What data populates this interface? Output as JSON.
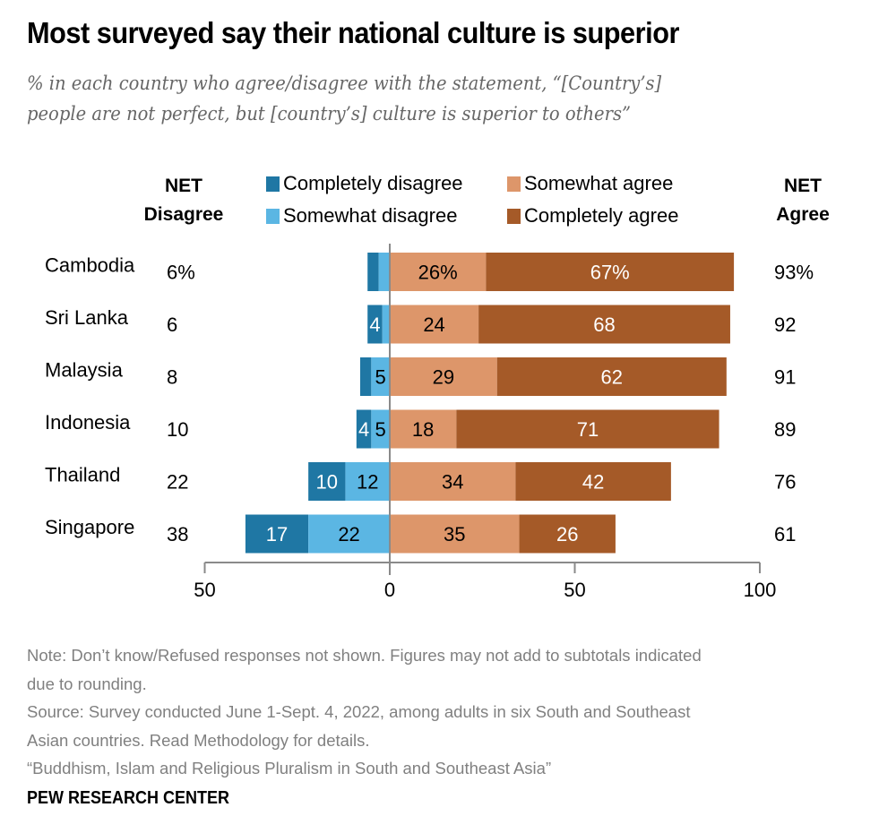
{
  "title": "Most surveyed say their national culture is superior",
  "subtitle_lines": [
    "% in each country who agree/disagree with the statement, “[Country’s]",
    "people are not perfect, but [country’s] culture is superior to others”"
  ],
  "headers": {
    "net_disagree_1": "NET",
    "net_disagree_2": "Disagree",
    "net_agree_1": "NET",
    "net_agree_2": "Agree"
  },
  "colors": {
    "completely_disagree": "#1f77a4",
    "somewhat_disagree": "#5bb6e3",
    "somewhat_agree": "#dd966a",
    "completely_agree": "#a55a28",
    "axis": "#8a8a8a"
  },
  "chart_data": {
    "type": "bar",
    "orientation": "horizontal-diverging-stacked",
    "title": "Most surveyed say their national culture is superior",
    "categories": [
      "Cambodia",
      "Sri Lanka",
      "Malaysia",
      "Indonesia",
      "Thailand",
      "Singapore"
    ],
    "series": [
      {
        "name": "Completely disagree",
        "values": [
          3,
          4,
          3,
          4,
          10,
          17
        ],
        "labels": [
          "",
          "4",
          "",
          "4",
          "10",
          "17"
        ]
      },
      {
        "name": "Somewhat disagree",
        "values": [
          3,
          2,
          5,
          5,
          12,
          22
        ],
        "labels": [
          "",
          "",
          "5",
          "5",
          "12",
          "22"
        ]
      },
      {
        "name": "Somewhat agree",
        "values": [
          26,
          24,
          29,
          18,
          34,
          35
        ],
        "labels": [
          "26%",
          "24",
          "29",
          "18",
          "34",
          "35"
        ]
      },
      {
        "name": "Completely agree",
        "values": [
          67,
          68,
          62,
          71,
          42,
          26
        ],
        "labels": [
          "67%",
          "68",
          "62",
          "71",
          "42",
          "26"
        ]
      }
    ],
    "net_disagree": [
      "6%",
      "6",
      "8",
      "10",
      "22",
      "38"
    ],
    "net_agree": [
      "93%",
      "92",
      "91",
      "89",
      "76",
      "61"
    ],
    "xlim": [
      -50,
      100
    ],
    "xticks": [
      -50,
      0,
      50,
      100
    ],
    "xtick_labels": [
      "50",
      "0",
      "50",
      "100"
    ],
    "legend": [
      "Completely disagree",
      "Somewhat disagree",
      "Somewhat agree",
      "Completely agree"
    ],
    "legend_position": "top"
  },
  "notes": [
    "Note: Don’t know/Refused responses not shown. Figures may not add to subtotals indicated",
    "due to rounding.",
    "Source: Survey conducted June 1-Sept. 4, 2022, among adults in six South and Southeast",
    "Asian countries. Read Methodology for details.",
    "“Buddhism, Islam and Religious Pluralism in South and Southeast Asia”"
  ],
  "brand": "PEW RESEARCH CENTER"
}
